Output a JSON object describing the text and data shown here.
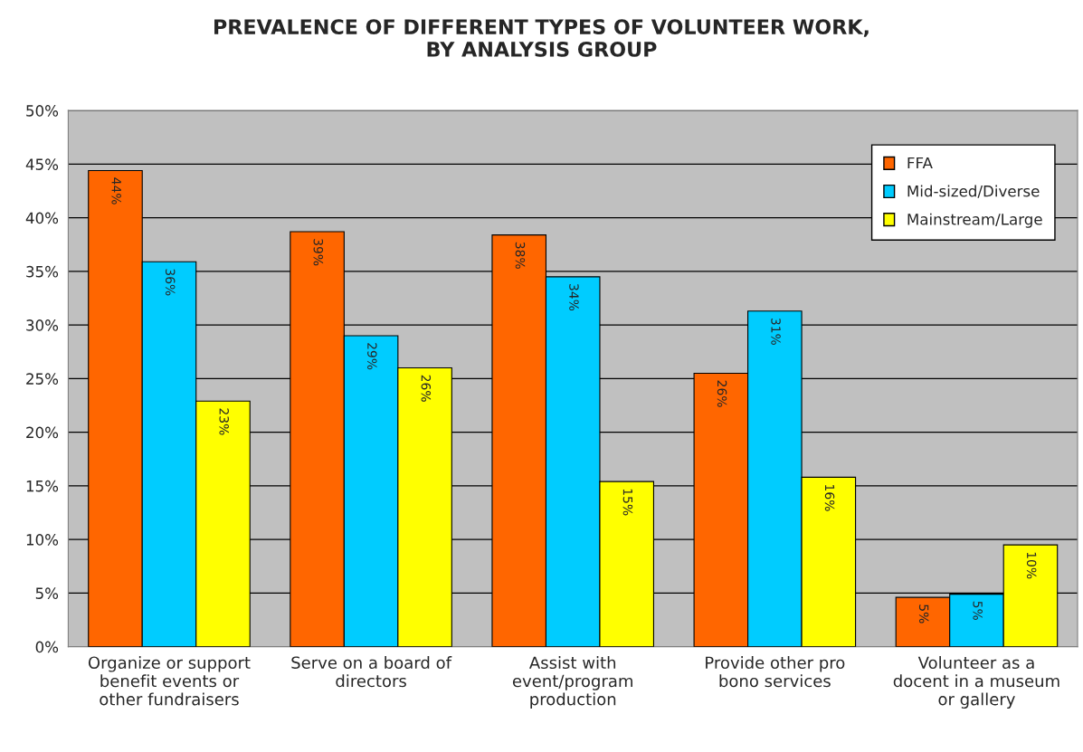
{
  "chart_data": {
    "type": "bar",
    "title": "PREVALENCE OF DIFFERENT TYPES OF VOLUNTEER WORK,\nBY ANALYSIS GROUP",
    "categories": [
      "Organize or support\nbenefit events or\nother fundraisers",
      "Serve on a board of\ndirectors",
      "Assist with\nevent/program\nproduction",
      "Provide other pro\nbono services",
      "Volunteer as a\ndocent in a museum\nor gallery"
    ],
    "series": [
      {
        "name": "FFA",
        "color": "#ff6600",
        "values": [
          44.4,
          38.7,
          38.4,
          25.5,
          4.6
        ],
        "value_labels": [
          "44%",
          "39%",
          "38%",
          "26%",
          "5%"
        ]
      },
      {
        "name": "Mid-sized/Diverse",
        "color": "#00ccff",
        "values": [
          35.9,
          29.0,
          34.5,
          31.3,
          4.9
        ],
        "value_labels": [
          "36%",
          "29%",
          "34%",
          "31%",
          "5%"
        ]
      },
      {
        "name": "Mainstream/Large",
        "color": "#ffff00",
        "values": [
          22.9,
          26.0,
          15.4,
          15.8,
          9.5
        ],
        "value_labels": [
          "23%",
          "26%",
          "15%",
          "16%",
          "10%"
        ]
      }
    ],
    "ylim": [
      0,
      50
    ],
    "yticks": [
      {
        "value": 0,
        "label": "0%"
      },
      {
        "value": 5,
        "label": "5%"
      },
      {
        "value": 10,
        "label": "10%"
      },
      {
        "value": 15,
        "label": "15%"
      },
      {
        "value": 20,
        "label": "20%"
      },
      {
        "value": 25,
        "label": "25%"
      },
      {
        "value": 30,
        "label": "30%"
      },
      {
        "value": 35,
        "label": "35%"
      },
      {
        "value": 40,
        "label": "40%"
      },
      {
        "value": 45,
        "label": "45%"
      },
      {
        "value": 50,
        "label": "50%"
      }
    ],
    "grid": "y",
    "legend": "top right"
  }
}
